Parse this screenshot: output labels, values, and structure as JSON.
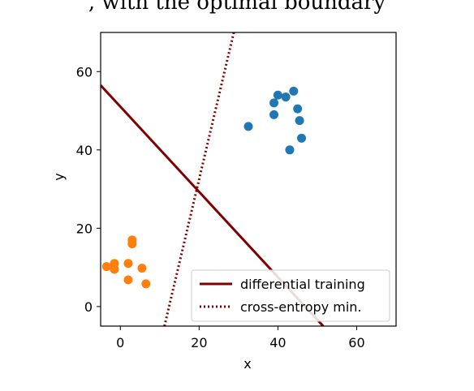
{
  "header_cutoff_text": ", with the optimal boundary",
  "chart_data": {
    "type": "scatter",
    "xlabel": "x",
    "ylabel": "y",
    "xlim": [
      -5,
      70
    ],
    "ylim": [
      -5,
      70
    ],
    "xticks": [
      "0",
      "20",
      "40",
      "60"
    ],
    "yticks": [
      "0",
      "20",
      "40",
      "60"
    ],
    "grid": false,
    "legend_position": "lower-right",
    "colors": {
      "class_a": "#1f77b4",
      "class_b": "#ff7f0e",
      "line": "#800000"
    },
    "series": [
      {
        "color": "#1f77b4",
        "points": [
          [
            32.5,
            46
          ],
          [
            39,
            49
          ],
          [
            39,
            52
          ],
          [
            40,
            54
          ],
          [
            42,
            53.5
          ],
          [
            44,
            55
          ],
          [
            45,
            50.5
          ],
          [
            45.5,
            47.5
          ],
          [
            46,
            43
          ],
          [
            43,
            40
          ]
        ]
      },
      {
        "color": "#ff7f0e",
        "points": [
          [
            -3.5,
            10.2
          ],
          [
            -1.5,
            11
          ],
          [
            -1.5,
            9.5
          ],
          [
            2,
            11
          ],
          [
            3,
            17
          ],
          [
            3,
            16
          ],
          [
            5.5,
            9.8
          ],
          [
            2,
            6.8
          ],
          [
            6.5,
            5.8
          ]
        ]
      }
    ],
    "lines": [
      {
        "name": "differential training",
        "style": "solid",
        "points": [
          [
            -5,
            56.5
          ],
          [
            51.5,
            -5
          ]
        ]
      },
      {
        "name": "cross-entropy min.",
        "style": "dotted",
        "points": [
          [
            11.2,
            -5
          ],
          [
            28.8,
            70
          ]
        ]
      }
    ]
  }
}
